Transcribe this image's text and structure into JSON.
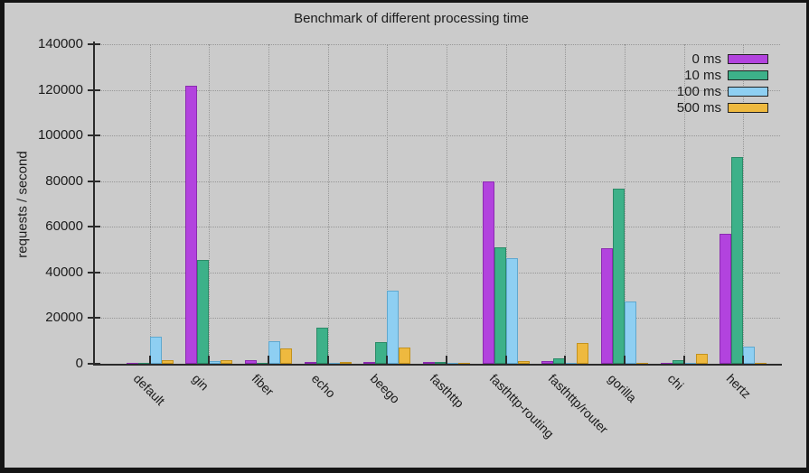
{
  "chart_data": {
    "type": "bar",
    "title": "Benchmark of different processing time",
    "xlabel": "",
    "ylabel": "requests / second",
    "ylim": [
      0,
      140000
    ],
    "yticks": [
      0,
      20000,
      40000,
      60000,
      80000,
      100000,
      120000,
      140000
    ],
    "grid": true,
    "legend_position": "top-right-inside",
    "categories": [
      "default",
      "gin",
      "fiber",
      "echo",
      "beego",
      "fasthttp",
      "fasthttp-routing",
      "fasthttp/router",
      "gorilla",
      "chi",
      "hertz"
    ],
    "series": [
      {
        "name": "0 ms",
        "color": "#b243de",
        "border_color": "#8b2bb0",
        "values": [
          500,
          122000,
          1600,
          900,
          900,
          700,
          80000,
          1000,
          50500,
          500,
          57000
        ]
      },
      {
        "name": "10 ms",
        "color": "#3db189",
        "border_color": "#2b8a67",
        "values": [
          300,
          45500,
          300,
          15700,
          9600,
          800,
          51000,
          2200,
          76800,
          1400,
          90600
        ]
      },
      {
        "name": "100 ms",
        "color": "#8ecff2",
        "border_color": "#5fa8cf",
        "values": [
          12000,
          1000,
          9800,
          300,
          31900,
          500,
          46300,
          500,
          27100,
          300,
          7400
        ]
      },
      {
        "name": "500 ms",
        "color": "#eeb93f",
        "border_color": "#c3921d",
        "values": [
          1400,
          1600,
          6800,
          700,
          7100,
          500,
          1200,
          9000,
          400,
          4500,
          300
        ]
      }
    ],
    "colors": {
      "background": "#cbcbcb",
      "frame": "#141414",
      "axis": "#2b2b2b",
      "grid": "#979797",
      "text": "#1c1c1c"
    }
  }
}
